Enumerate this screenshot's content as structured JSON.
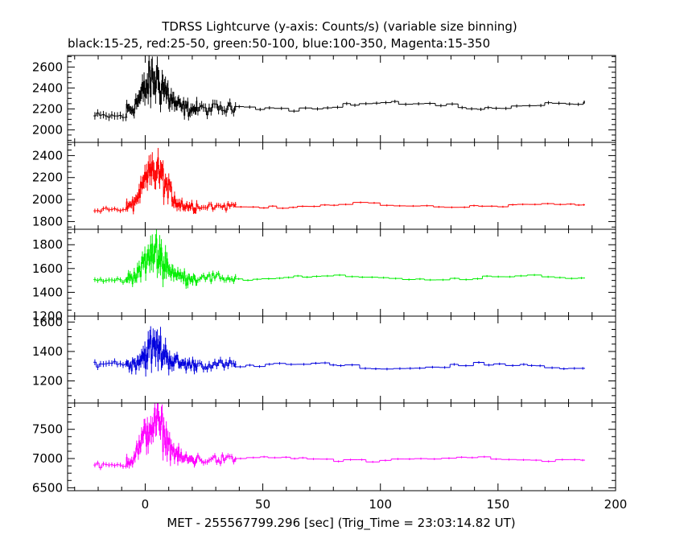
{
  "chart_data": {
    "type": "line",
    "title": "TDRSS Lightcurve (y-axis: Counts/s) (variable size binning)",
    "subtitle": "black:15-25, red:25-50, green:50-100, blue:100-350, Magenta:15-350",
    "xlabel": "MET - 255567799.296 [sec] (Trig_Time = 23:03:14.82 UT)",
    "xlim": [
      -33,
      200
    ],
    "xticks": [
      0,
      50,
      100,
      150,
      200
    ],
    "grid": false,
    "panels": [
      {
        "name": "15-25",
        "color": "#000000",
        "ylim": [
          1880,
          2710
        ],
        "yticks": [
          2000,
          2200,
          2400,
          2600
        ],
        "baseline": 2200,
        "burst_peak": 2480,
        "burst_noise": 240,
        "pre_level": 2130,
        "post_level": 2230,
        "slow_amp": 45,
        "points": [
          {
            "x": -20,
            "y": 2110
          },
          {
            "x": -10,
            "y": 2150
          },
          {
            "x": 0,
            "y": 2400
          },
          {
            "x": 5,
            "y": 2450
          },
          {
            "x": 10,
            "y": 2300
          },
          {
            "x": 20,
            "y": 2150
          },
          {
            "x": 30,
            "y": 2200
          },
          {
            "x": 50,
            "y": 2160
          },
          {
            "x": 75,
            "y": 2240
          },
          {
            "x": 100,
            "y": 2220
          },
          {
            "x": 130,
            "y": 2280
          },
          {
            "x": 150,
            "y": 2250
          },
          {
            "x": 175,
            "y": 2270
          },
          {
            "x": 185,
            "y": 2210
          }
        ]
      },
      {
        "name": "25-50",
        "color": "#ff0000",
        "ylim": [
          1730,
          2520
        ],
        "yticks": [
          1800,
          2000,
          2200,
          2400
        ],
        "baseline": 1940,
        "burst_peak": 2260,
        "burst_noise": 190,
        "pre_level": 1910,
        "post_level": 1945,
        "slow_amp": 25,
        "points": [
          {
            "x": -20,
            "y": 1900
          },
          {
            "x": -10,
            "y": 1920
          },
          {
            "x": 0,
            "y": 2150
          },
          {
            "x": 5,
            "y": 2250
          },
          {
            "x": 10,
            "y": 2050
          },
          {
            "x": 20,
            "y": 1900
          },
          {
            "x": 35,
            "y": 1920
          },
          {
            "x": 60,
            "y": 1940
          },
          {
            "x": 105,
            "y": 1980
          },
          {
            "x": 130,
            "y": 1950
          },
          {
            "x": 155,
            "y": 2000
          },
          {
            "x": 185,
            "y": 1920
          }
        ]
      },
      {
        "name": "50-100",
        "color": "#00ee00",
        "ylim": [
          1200,
          1930
        ],
        "yticks": [
          1200,
          1400,
          1600,
          1800
        ],
        "baseline": 1520,
        "burst_peak": 1720,
        "burst_noise": 170,
        "pre_level": 1500,
        "post_level": 1520,
        "slow_amp": 25,
        "points": [
          {
            "x": -20,
            "y": 1500
          },
          {
            "x": -10,
            "y": 1540
          },
          {
            "x": 0,
            "y": 1650
          },
          {
            "x": 5,
            "y": 1700
          },
          {
            "x": 10,
            "y": 1550
          },
          {
            "x": 20,
            "y": 1500
          },
          {
            "x": 40,
            "y": 1520
          },
          {
            "x": 80,
            "y": 1510
          },
          {
            "x": 105,
            "y": 1540
          },
          {
            "x": 125,
            "y": 1470
          },
          {
            "x": 150,
            "y": 1530
          },
          {
            "x": 185,
            "y": 1520
          }
        ]
      },
      {
        "name": "100-350",
        "color": "#0000dd",
        "ylim": [
          1050,
          1640
        ],
        "yticks": [
          1200,
          1400,
          1600
        ],
        "baseline": 1310,
        "burst_peak": 1420,
        "burst_noise": 140,
        "pre_level": 1320,
        "post_level": 1300,
        "slow_amp": 25,
        "points": [
          {
            "x": -20,
            "y": 1330
          },
          {
            "x": -10,
            "y": 1320
          },
          {
            "x": 0,
            "y": 1350
          },
          {
            "x": 5,
            "y": 1400
          },
          {
            "x": 10,
            "y": 1320
          },
          {
            "x": 20,
            "y": 1300
          },
          {
            "x": 40,
            "y": 1320
          },
          {
            "x": 60,
            "y": 1340
          },
          {
            "x": 100,
            "y": 1290
          },
          {
            "x": 130,
            "y": 1310
          },
          {
            "x": 160,
            "y": 1270
          },
          {
            "x": 185,
            "y": 1320
          }
        ]
      },
      {
        "name": "15-350",
        "color": "#ff00ff",
        "ylim": [
          6450,
          7950
        ],
        "yticks": [
          6500,
          7000,
          7500
        ],
        "baseline": 6980,
        "burst_peak": 7600,
        "burst_noise": 380,
        "pre_level": 6880,
        "post_level": 6990,
        "slow_amp": 50,
        "points": [
          {
            "x": -20,
            "y": 6850
          },
          {
            "x": -10,
            "y": 6950
          },
          {
            "x": 0,
            "y": 7400
          },
          {
            "x": 5,
            "y": 7600
          },
          {
            "x": 10,
            "y": 7150
          },
          {
            "x": 20,
            "y": 6850
          },
          {
            "x": 35,
            "y": 6950
          },
          {
            "x": 60,
            "y": 6980
          },
          {
            "x": 105,
            "y": 7020
          },
          {
            "x": 130,
            "y": 7050
          },
          {
            "x": 155,
            "y": 7030
          },
          {
            "x": 185,
            "y": 6960
          }
        ]
      }
    ]
  }
}
